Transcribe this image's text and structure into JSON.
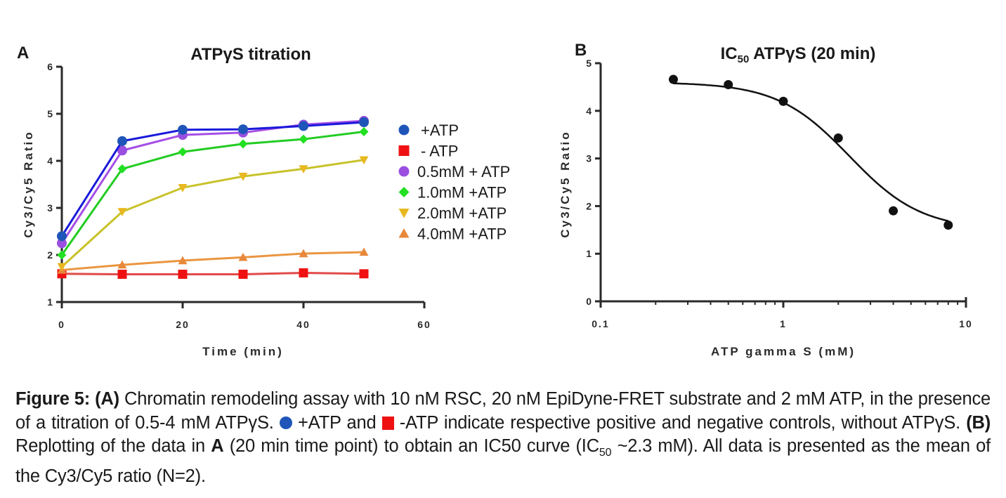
{
  "chart_data": [
    {
      "panel_label": "A",
      "type": "line",
      "title": "ATPγS titration",
      "xlabel": "Time (min)",
      "ylabel": "Cy3/Cy5 Ratio",
      "xlim": [
        0,
        60
      ],
      "ylim": [
        1,
        6
      ],
      "xticks": [
        0,
        20,
        40,
        60
      ],
      "yticks": [
        1,
        2,
        3,
        4,
        5,
        6
      ],
      "grid": false,
      "legend_position": "right",
      "x": [
        0,
        10,
        20,
        30,
        40,
        50
      ],
      "series": [
        {
          "name": "+ATP",
          "marker": "circle",
          "color": "#1f55b8",
          "line_color": "#1a1adb",
          "values": [
            2.4,
            4.42,
            4.66,
            4.67,
            4.74,
            4.82
          ]
        },
        {
          "name": "- ATP",
          "marker": "square",
          "color": "#ef1111",
          "line_color": "#e24a4a",
          "values": [
            1.6,
            1.59,
            1.59,
            1.59,
            1.62,
            1.6
          ]
        },
        {
          "name": "0.5mM + ATP",
          "marker": "circle",
          "color": "#9a4fe0",
          "line_color": "#a54fe6",
          "values": [
            2.25,
            4.22,
            4.55,
            4.6,
            4.77,
            4.85
          ]
        },
        {
          "name": "1.0mM +ATP",
          "marker": "diamond",
          "color": "#22e022",
          "line_color": "#22cc22",
          "values": [
            2.0,
            3.83,
            4.19,
            4.36,
            4.46,
            4.62
          ]
        },
        {
          "name": "2.0mM +ATP",
          "marker": "triangle-down",
          "color": "#e8b820",
          "line_color": "#c8c22a",
          "values": [
            1.75,
            2.92,
            3.43,
            3.67,
            3.83,
            4.02
          ]
        },
        {
          "name": "4.0mM +ATP",
          "marker": "triangle-up",
          "color": "#e8883a",
          "line_color": "#ea9640",
          "values": [
            1.68,
            1.79,
            1.88,
            1.95,
            2.03,
            2.06
          ]
        }
      ]
    },
    {
      "panel_label": "B",
      "type": "scatter",
      "title": "IC",
      "title_sub": "50",
      "title_rest": " ATPγS (20 min)",
      "xlabel": "ATP gamma S (mM)",
      "ylabel": "Cy3/Cy5 Ratio",
      "xscale": "log",
      "xlim": [
        0.1,
        10
      ],
      "ylim": [
        0,
        5
      ],
      "xticks": [
        0.1,
        1,
        10
      ],
      "xtick_labels": [
        "0.1",
        "1",
        "10"
      ],
      "yticks": [
        0,
        1,
        2,
        3,
        4,
        5
      ],
      "grid": false,
      "x": [
        0.25,
        0.5,
        1.0,
        2.0,
        4.0,
        8.0
      ],
      "values": [
        4.66,
        4.55,
        4.2,
        3.43,
        1.9,
        1.6
      ],
      "fit": {
        "model": "four-parameter logistic",
        "top": 4.6,
        "bottom": 1.5,
        "ic50": 2.3,
        "hill": 2.2
      }
    }
  ],
  "caption": {
    "figure_label": "Figure 5:",
    "panel_a": "(A)",
    "text1": " Chromatin remodeling assay with 10 nM RSC, 20 nM EpiDyne-FRET substrate and 2 mM ATP, in the presence of a titration of 0.5-4 mM ATPγS. ",
    "text2": " +ATP and ",
    "text3": " -ATP indicate respective positive and negative controls, without ATPγS. ",
    "panel_b": "(B)",
    "text4": " Replotting of the data in ",
    "bold_a": "A",
    "text5": " (20 min time point) to obtain an IC50 curve (IC",
    "sub50": "50",
    "text6": " ~2.3 mM). All data is presented as the mean of the Cy3/Cy5 ratio (N=2)."
  }
}
